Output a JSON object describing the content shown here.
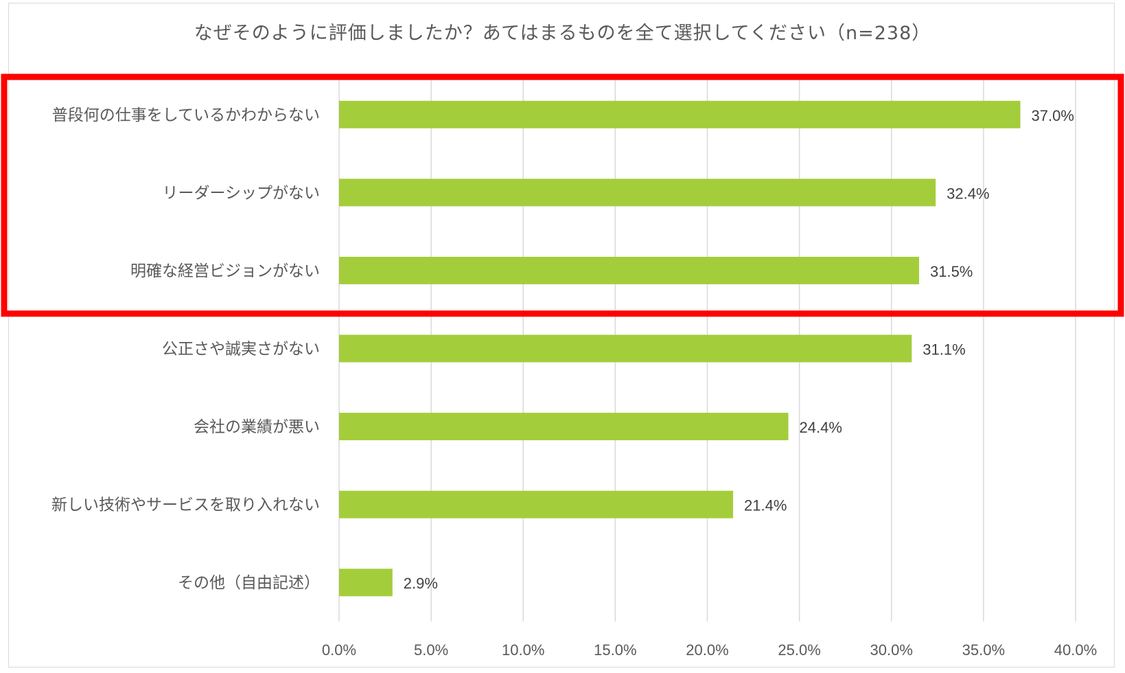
{
  "chart_data": {
    "type": "bar",
    "orientation": "horizontal",
    "title": "なぜそのように評価しましたか？あてはまるものを全て選択してください（n=238）",
    "categories": [
      "普段何の仕事をしているかわからない",
      "リーダーシップがない",
      "明確な経営ビジョンがない",
      "公正さや誠実さがない",
      "会社の業績が悪い",
      "新しい技術やサービスを取り入れない",
      "その他（自由記述）"
    ],
    "values": [
      37.0,
      32.4,
      31.5,
      31.1,
      24.4,
      21.4,
      2.9
    ],
    "data_labels": [
      "37.0%",
      "32.4%",
      "31.5%",
      "31.1%",
      "24.4%",
      "21.4%",
      "2.9%"
    ],
    "xlim": [
      0,
      40
    ],
    "x_ticks": [
      0,
      5,
      10,
      15,
      20,
      25,
      30,
      35,
      40
    ],
    "x_tick_labels": [
      "0.0%",
      "5.0%",
      "10.0%",
      "15.0%",
      "20.0%",
      "25.0%",
      "30.0%",
      "35.0%",
      "40.0%"
    ],
    "grid": "vertical",
    "legend": "none",
    "bar_color": "#a3cd3a",
    "grid_color": "#d9d9d9",
    "highlight": {
      "categories_highlighted": 3,
      "color": "#ff0000"
    }
  }
}
